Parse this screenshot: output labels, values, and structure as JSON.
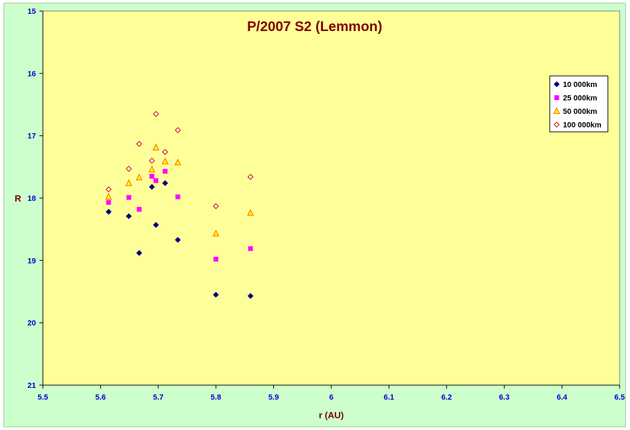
{
  "chart_data": {
    "type": "scatter",
    "title": "P/2007 S2 (Lemmon)",
    "xlabel": "r (AU)",
    "ylabel": "R",
    "xlim": [
      5.5,
      6.5
    ],
    "ylim": [
      15,
      21
    ],
    "y_reversed": true,
    "x_ticks": [
      "5.5",
      "5.6",
      "5.7",
      "5.8",
      "5.9",
      "6",
      "6.1",
      "6.2",
      "6.3",
      "6.4",
      "6.5"
    ],
    "y_ticks": [
      "15",
      "16",
      "17",
      "18",
      "19",
      "20",
      "21"
    ],
    "grid": false,
    "legend_position": "top-right",
    "plot_background": "#ffff99",
    "figure_background": "#ccffcc",
    "series": [
      {
        "name": "10 000km",
        "marker": "diamond-filled",
        "color": "#000080",
        "points": [
          [
            5.614,
            18.22
          ],
          [
            5.649,
            18.29
          ],
          [
            5.667,
            18.88
          ],
          [
            5.689,
            17.82
          ],
          [
            5.696,
            18.43
          ],
          [
            5.712,
            17.76
          ],
          [
            5.734,
            18.67
          ],
          [
            5.8,
            19.55
          ],
          [
            5.86,
            19.57
          ]
        ]
      },
      {
        "name": "25 000km",
        "marker": "square-filled",
        "color": "#ff00ff",
        "points": [
          [
            5.614,
            18.07
          ],
          [
            5.649,
            17.99
          ],
          [
            5.667,
            18.18
          ],
          [
            5.689,
            17.65
          ],
          [
            5.696,
            17.72
          ],
          [
            5.712,
            17.57
          ],
          [
            5.734,
            17.98
          ],
          [
            5.8,
            18.98
          ],
          [
            5.86,
            18.81
          ]
        ]
      },
      {
        "name": "50 000km",
        "marker": "triangle-open",
        "color": "#ff6600",
        "fill": "#ffff00",
        "points": [
          [
            5.614,
            17.98
          ],
          [
            5.649,
            17.76
          ],
          [
            5.667,
            17.67
          ],
          [
            5.689,
            17.54
          ],
          [
            5.696,
            17.19
          ],
          [
            5.712,
            17.41
          ],
          [
            5.734,
            17.43
          ],
          [
            5.8,
            18.57
          ],
          [
            5.86,
            18.24
          ]
        ]
      },
      {
        "name": "100 000km",
        "marker": "diamond-open",
        "color": "#cc0000",
        "fill": "#ffffff",
        "points": [
          [
            5.614,
            17.86
          ],
          [
            5.649,
            17.53
          ],
          [
            5.667,
            17.13
          ],
          [
            5.689,
            17.4
          ],
          [
            5.696,
            16.65
          ],
          [
            5.712,
            17.26
          ],
          [
            5.734,
            16.91
          ],
          [
            5.8,
            18.13
          ],
          [
            5.86,
            17.66
          ]
        ]
      }
    ]
  }
}
